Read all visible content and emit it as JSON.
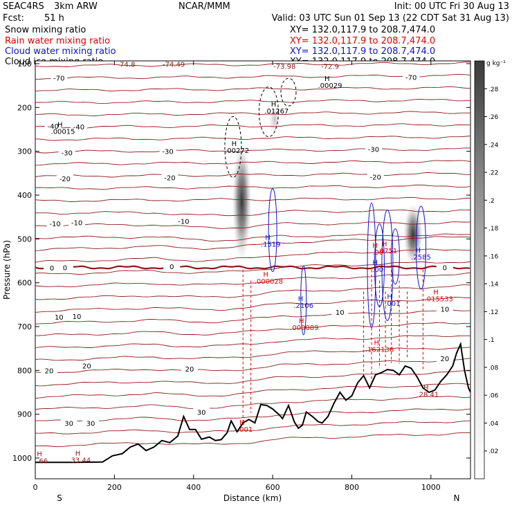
{
  "header": {
    "title": "SEAC4RS",
    "model": "3km ARW",
    "org": "NCAR/MMM",
    "init": "Init: 00 UTC Fri 30 Aug 13",
    "fcst_label": "Fcst:",
    "fcst_value": "51 h",
    "valid": "Valid: 03 UTC Sun 01 Sep 13 (22 CDT Sat 31 Aug 13)"
  },
  "legend_lines": [
    {
      "label": "Snow mixing ratio",
      "xy": "XY= 132.0,117.9 to 208.7,474.0",
      "color": "#000000"
    },
    {
      "label": "Rain water mixing ratio",
      "xy": "XY= 132.0,117.9 to 208.7,474.0",
      "color": "#e00000"
    },
    {
      "label": "Cloud water mixing ratio",
      "xy": "XY= 132.0,117.9 to 208.7,474.0",
      "color": "#1010d0"
    },
    {
      "label": "Cloud ice mixing ratio",
      "xy": "XY= 132.0,117.9 to 208.7,474.0",
      "color": "#000000"
    }
  ],
  "colorbar": {
    "unit": "g kg⁻¹",
    "ticks": [
      ".02",
      ".04",
      ".06",
      ".08",
      ".1",
      ".12",
      ".14",
      ".16",
      ".18",
      ".2",
      ".22",
      ".24",
      ".26",
      ".28"
    ]
  },
  "chart_data": {
    "type": "cross-section",
    "xlabel": "Distance (km)",
    "ylabel": "Pressure (hPa)",
    "xlim": [
      0,
      1100
    ],
    "ylim": [
      1050,
      100
    ],
    "x_ticks": [
      0,
      200,
      400,
      600,
      800,
      1000
    ],
    "y_ticks": [
      100,
      200,
      300,
      400,
      500,
      600,
      700,
      800,
      900,
      1000
    ],
    "x_end_labels": {
      "left": "S",
      "right": "N"
    },
    "temperature_contour_color": "#8b1a1a",
    "temperature_labels": [
      {
        "text": "-70",
        "x": 60,
        "p": 132
      },
      {
        "text": "-70",
        "x": 950,
        "p": 131
      },
      {
        "text": "-40",
        "x": 45,
        "p": 242
      },
      {
        "text": "-40",
        "x": 110,
        "p": 244
      },
      {
        "text": "-30",
        "x": 80,
        "p": 303
      },
      {
        "text": "-30",
        "x": 335,
        "p": 300
      },
      {
        "text": "-30",
        "x": 855,
        "p": 295
      },
      {
        "text": "-20",
        "x": 75,
        "p": 362
      },
      {
        "text": "-20",
        "x": 340,
        "p": 360
      },
      {
        "text": "-20",
        "x": 860,
        "p": 358
      },
      {
        "text": "-10",
        "x": 50,
        "p": 465
      },
      {
        "text": "-10",
        "x": 105,
        "p": 462
      },
      {
        "text": "-10",
        "x": 375,
        "p": 459
      },
      {
        "text": "0",
        "x": 42,
        "p": 566
      },
      {
        "text": "0",
        "x": 75,
        "p": 565
      },
      {
        "text": "0",
        "x": 345,
        "p": 563
      },
      {
        "text": "0",
        "x": 1035,
        "p": 565
      },
      {
        "text": "10",
        "x": 60,
        "p": 678
      },
      {
        "text": "10",
        "x": 105,
        "p": 676
      },
      {
        "text": "10",
        "x": 770,
        "p": 667
      },
      {
        "text": "10",
        "x": 1035,
        "p": 660
      },
      {
        "text": "20",
        "x": 35,
        "p": 800
      },
      {
        "text": "20",
        "x": 130,
        "p": 789
      },
      {
        "text": "20",
        "x": 390,
        "p": 796
      },
      {
        "text": "20",
        "x": 1035,
        "p": 773
      },
      {
        "text": "30",
        "x": 85,
        "p": 920
      },
      {
        "text": "30",
        "x": 140,
        "p": 920
      },
      {
        "text": "30",
        "x": 420,
        "p": 895
      }
    ],
    "max_min_labels": [
      {
        "text": "-74.8",
        "x": 230,
        "p": 107,
        "color": "#8b1a1a"
      },
      {
        "text": "-74.49",
        "x": 350,
        "p": 107,
        "color": "#8b1a1a"
      },
      {
        "text": "-73.98",
        "x": 630,
        "p": 112,
        "color": "#8b1a1a"
      },
      {
        "text": "-72.9",
        "x": 745,
        "p": 112,
        "color": "#8b1a1a"
      },
      {
        "text": "33.44",
        "x": 115,
        "p": 1010,
        "color": "#8b1a1a"
      },
      {
        "text": "28.41",
        "x": 995,
        "p": 860,
        "color": "#8b1a1a"
      },
      {
        "text": ".66",
        "x": 18,
        "p": 1012,
        "color": "#8b1a1a"
      },
      {
        "text": ".00029",
        "x": 745,
        "p": 155,
        "color": "#000000"
      },
      {
        "text": ".01267",
        "x": 610,
        "p": 214,
        "color": "#000000"
      },
      {
        "text": ".00272",
        "x": 510,
        "p": 304,
        "color": "#000000"
      },
      {
        "text": ".00015",
        "x": 70,
        "p": 260,
        "color": "#000000"
      },
      {
        "text": ".1519",
        "x": 595,
        "p": 518,
        "color": "#1010d0"
      },
      {
        "text": ".2106",
        "x": 678,
        "p": 657,
        "color": "#1010d0"
      },
      {
        "text": ".2585",
        "x": 975,
        "p": 547,
        "color": "#1010d0"
      },
      {
        "text": ".000028",
        "x": 590,
        "p": 602,
        "color": "#e00000"
      },
      {
        "text": ".000089",
        "x": 680,
        "p": 708,
        "color": "#e00000"
      },
      {
        "text": ".00",
        "x": 866,
        "p": 536,
        "color": "#e00000"
      },
      {
        "text": ".0751",
        "x": 890,
        "p": 533,
        "color": "#e00000"
      },
      {
        "text": ".00",
        "x": 866,
        "p": 575,
        "color": "#1010d0"
      },
      {
        "text": ".001",
        "x": 903,
        "p": 653,
        "color": "#1010d0"
      },
      {
        "text": ".015533",
        "x": 1020,
        "p": 642,
        "color": "#e00000"
      },
      {
        "text": ".162136",
        "x": 870,
        "p": 758,
        "color": "#e00000"
      },
      {
        "text": ".001",
        "x": 530,
        "p": 940,
        "color": "#e00000"
      }
    ],
    "terrain_profile": {
      "x": [
        0,
        100,
        170,
        195,
        220,
        240,
        260,
        280,
        300,
        320,
        340,
        360,
        375,
        390,
        405,
        420,
        440,
        455,
        470,
        485,
        495,
        510,
        525,
        540,
        555,
        570,
        585,
        600,
        615,
        625,
        640,
        655,
        665,
        675,
        685,
        700,
        715,
        725,
        740,
        755,
        770,
        785,
        800,
        815,
        830,
        845,
        860,
        875,
        890,
        905,
        920,
        935,
        950,
        965,
        980,
        995,
        1010,
        1025,
        1040,
        1055,
        1065,
        1075,
        1085,
        1095,
        1100
      ],
      "p": [
        1010,
        1010,
        1009,
        995,
        990,
        975,
        968,
        983,
        975,
        960,
        965,
        950,
        905,
        935,
        935,
        957,
        952,
        960,
        958,
        942,
        915,
        940,
        920,
        912,
        920,
        878,
        880,
        888,
        900,
        910,
        880,
        918,
        932,
        925,
        895,
        905,
        917,
        920,
        905,
        875,
        850,
        868,
        858,
        828,
        812,
        840,
        810,
        805,
        798,
        800,
        810,
        790,
        795,
        815,
        840,
        850,
        845,
        825,
        810,
        790,
        760,
        740,
        800,
        840,
        850
      ]
    },
    "rain_columns_x": [
      525,
      545,
      830,
      850,
      870,
      885,
      900,
      920,
      940,
      980
    ],
    "cloud_features": [
      {
        "type": "snow_shade",
        "x_center": 522,
        "p_top": 280,
        "p_bottom": 550,
        "max": 0.28
      },
      {
        "type": "snow_shade",
        "x_center": 955,
        "p_top": 420,
        "p_bottom": 560,
        "max": 0.28
      },
      {
        "type": "snow_shade",
        "x_center": 605,
        "p_top": 190,
        "p_bottom": 265,
        "max": 0.06
      }
    ]
  }
}
